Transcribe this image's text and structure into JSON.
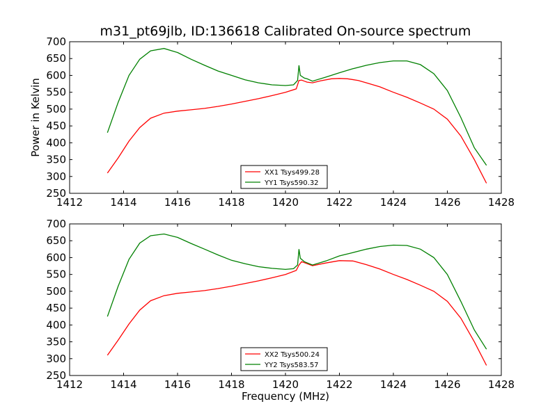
{
  "title": "m31_pt69jlb, ID:136618 Calibrated On-source spectrum",
  "xlabel": "Frequency (MHz)",
  "ylabel": "Power in Kelvin",
  "colors": {
    "xx": "#ff0000",
    "yy": "#008000",
    "axis": "#000000",
    "background": "#ffffff"
  },
  "chart_data": [
    {
      "type": "line",
      "xlabel": "",
      "ylabel": "Power in Kelvin",
      "xlim": [
        1412,
        1428
      ],
      "ylim": [
        250,
        700
      ],
      "xticks": [
        1412,
        1414,
        1416,
        1418,
        1420,
        1422,
        1424,
        1426,
        1428
      ],
      "yticks": [
        250,
        300,
        350,
        400,
        450,
        500,
        550,
        600,
        650,
        700
      ],
      "legend_placement": "lower-center",
      "grid": false,
      "series": [
        {
          "name": "XX1 Tsys499.28",
          "color": "#ff0000",
          "points": [
            [
              1413.4,
              310
            ],
            [
              1413.8,
              355
            ],
            [
              1414.2,
              405
            ],
            [
              1414.6,
              445
            ],
            [
              1415.0,
              473
            ],
            [
              1415.5,
              488
            ],
            [
              1416.0,
              494
            ],
            [
              1416.5,
              498
            ],
            [
              1417.0,
              502
            ],
            [
              1417.5,
              508
            ],
            [
              1418.0,
              515
            ],
            [
              1418.5,
              523
            ],
            [
              1419.0,
              531
            ],
            [
              1419.5,
              540
            ],
            [
              1420.0,
              550
            ],
            [
              1420.4,
              560
            ],
            [
              1420.5,
              585
            ],
            [
              1420.6,
              586
            ],
            [
              1420.7,
              583
            ],
            [
              1420.8,
              580
            ],
            [
              1421.0,
              578
            ],
            [
              1421.3,
              584
            ],
            [
              1421.7,
              590
            ],
            [
              1422.0,
              591
            ],
            [
              1422.3,
              590
            ],
            [
              1422.7,
              585
            ],
            [
              1423.0,
              578
            ],
            [
              1423.5,
              566
            ],
            [
              1424.0,
              550
            ],
            [
              1424.5,
              535
            ],
            [
              1425.0,
              518
            ],
            [
              1425.5,
              500
            ],
            [
              1426.0,
              470
            ],
            [
              1426.5,
              420
            ],
            [
              1427.0,
              350
            ],
            [
              1427.45,
              280
            ]
          ]
        },
        {
          "name": "YY1 Tsys590.32",
          "color": "#008000",
          "points": [
            [
              1413.4,
              430
            ],
            [
              1413.8,
              520
            ],
            [
              1414.2,
              600
            ],
            [
              1414.6,
              648
            ],
            [
              1415.0,
              673
            ],
            [
              1415.5,
              680
            ],
            [
              1416.0,
              668
            ],
            [
              1416.5,
              648
            ],
            [
              1417.0,
              630
            ],
            [
              1417.5,
              613
            ],
            [
              1418.0,
              600
            ],
            [
              1418.5,
              587
            ],
            [
              1419.0,
              578
            ],
            [
              1419.5,
              572
            ],
            [
              1420.0,
              570
            ],
            [
              1420.3,
              572
            ],
            [
              1420.45,
              585
            ],
            [
              1420.5,
              630
            ],
            [
              1420.55,
              600
            ],
            [
              1420.7,
              592
            ],
            [
              1420.8,
              590
            ],
            [
              1421.0,
              583
            ],
            [
              1421.5,
              595
            ],
            [
              1422.0,
              608
            ],
            [
              1422.5,
              620
            ],
            [
              1423.0,
              630
            ],
            [
              1423.5,
              638
            ],
            [
              1424.0,
              643
            ],
            [
              1424.5,
              643
            ],
            [
              1425.0,
              632
            ],
            [
              1425.5,
              605
            ],
            [
              1426.0,
              555
            ],
            [
              1426.5,
              475
            ],
            [
              1427.0,
              385
            ],
            [
              1427.45,
              333
            ]
          ]
        }
      ]
    },
    {
      "type": "line",
      "xlabel": "Frequency (MHz)",
      "ylabel": "",
      "xlim": [
        1412,
        1428
      ],
      "ylim": [
        250,
        700
      ],
      "xticks": [
        1412,
        1414,
        1416,
        1418,
        1420,
        1422,
        1424,
        1426,
        1428
      ],
      "yticks": [
        250,
        300,
        350,
        400,
        450,
        500,
        550,
        600,
        650,
        700
      ],
      "legend_placement": "lower-center",
      "grid": false,
      "series": [
        {
          "name": "XX2 Tsys500.24",
          "color": "#ff0000",
          "points": [
            [
              1413.4,
              310
            ],
            [
              1413.8,
              355
            ],
            [
              1414.2,
              403
            ],
            [
              1414.6,
              444
            ],
            [
              1415.0,
              472
            ],
            [
              1415.5,
              487
            ],
            [
              1416.0,
              494
            ],
            [
              1416.5,
              498
            ],
            [
              1417.0,
              502
            ],
            [
              1417.5,
              508
            ],
            [
              1418.0,
              515
            ],
            [
              1418.5,
              523
            ],
            [
              1419.0,
              531
            ],
            [
              1419.5,
              540
            ],
            [
              1420.0,
              550
            ],
            [
              1420.4,
              562
            ],
            [
              1420.5,
              578
            ],
            [
              1420.6,
              588
            ],
            [
              1420.8,
              582
            ],
            [
              1421.0,
              576
            ],
            [
              1421.5,
              584
            ],
            [
              1422.0,
              591
            ],
            [
              1422.5,
              590
            ],
            [
              1423.0,
              579
            ],
            [
              1423.5,
              566
            ],
            [
              1424.0,
              550
            ],
            [
              1424.5,
              535
            ],
            [
              1425.0,
              518
            ],
            [
              1425.5,
              500
            ],
            [
              1426.0,
              470
            ],
            [
              1426.5,
              420
            ],
            [
              1427.0,
              350
            ],
            [
              1427.45,
              280
            ]
          ]
        },
        {
          "name": "YY2 Tsys583.57",
          "color": "#008000",
          "points": [
            [
              1413.4,
              425
            ],
            [
              1413.8,
              515
            ],
            [
              1414.2,
              595
            ],
            [
              1414.6,
              643
            ],
            [
              1415.0,
              665
            ],
            [
              1415.5,
              670
            ],
            [
              1416.0,
              660
            ],
            [
              1416.5,
              642
            ],
            [
              1417.0,
              625
            ],
            [
              1417.5,
              608
            ],
            [
              1418.0,
              592
            ],
            [
              1418.5,
              582
            ],
            [
              1419.0,
              573
            ],
            [
              1419.5,
              568
            ],
            [
              1420.0,
              565
            ],
            [
              1420.3,
              567
            ],
            [
              1420.45,
              578
            ],
            [
              1420.5,
              625
            ],
            [
              1420.55,
              598
            ],
            [
              1420.7,
              588
            ],
            [
              1421.0,
              578
            ],
            [
              1421.5,
              590
            ],
            [
              1422.0,
              605
            ],
            [
              1422.5,
              615
            ],
            [
              1423.0,
              625
            ],
            [
              1423.5,
              633
            ],
            [
              1424.0,
              637
            ],
            [
              1424.5,
              636
            ],
            [
              1425.0,
              625
            ],
            [
              1425.5,
              600
            ],
            [
              1426.0,
              550
            ],
            [
              1426.5,
              470
            ],
            [
              1427.0,
              385
            ],
            [
              1427.45,
              328
            ]
          ]
        }
      ]
    }
  ]
}
